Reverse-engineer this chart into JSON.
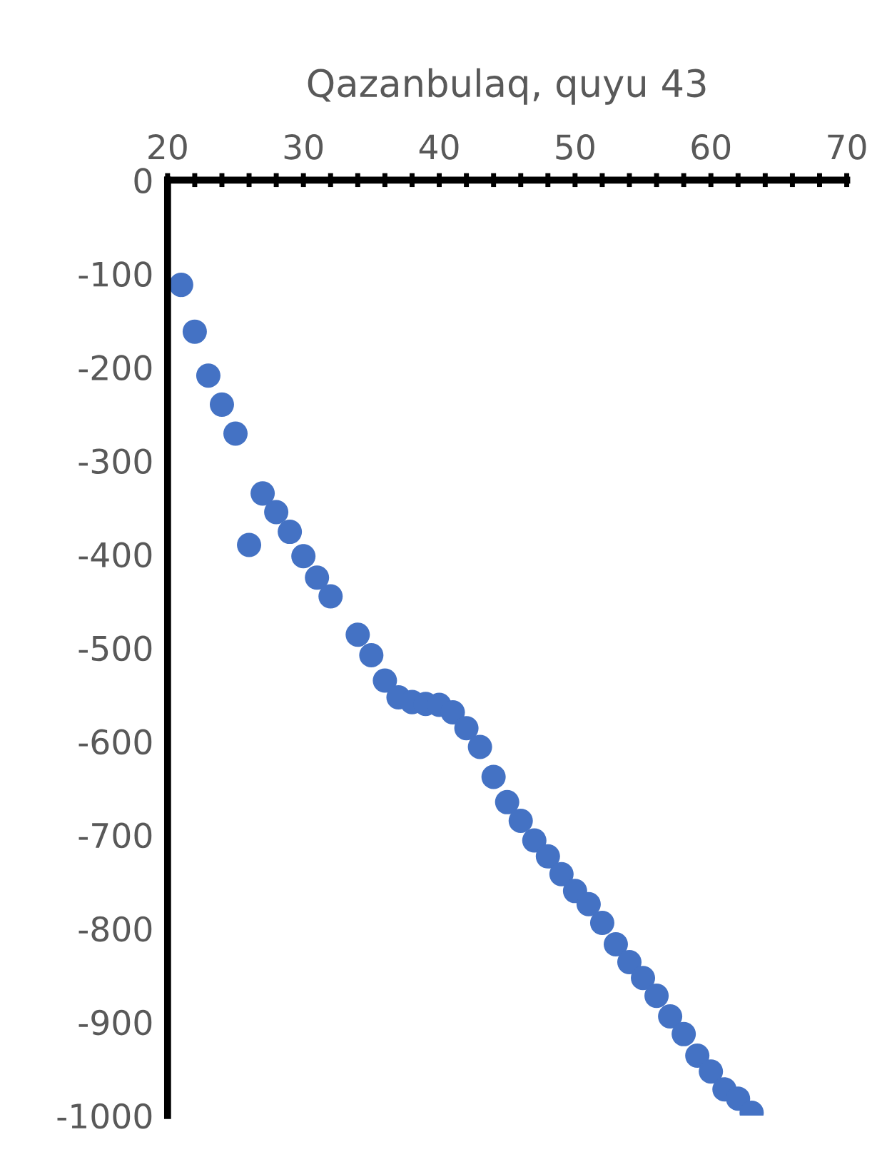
{
  "chart_data": {
    "type": "scatter",
    "title": "Qazanbulaq, quyu 43",
    "x": [
      21,
      22,
      23,
      24,
      25,
      26,
      27,
      28,
      29,
      30,
      31,
      32,
      34,
      35,
      36,
      37,
      38,
      39,
      40,
      41,
      42,
      43,
      44,
      45,
      46,
      47,
      48,
      49,
      50,
      51,
      52,
      53,
      54,
      55,
      56,
      57,
      58,
      59,
      60,
      61,
      62,
      63
    ],
    "series": [
      {
        "color": "#4472c4",
        "values": [
          -112,
          -162,
          -209,
          -240,
          -271,
          -390,
          -335,
          -355,
          -376,
          -402,
          -425,
          -445,
          -486,
          -508,
          -535,
          -553,
          -558,
          -560,
          -561,
          -569,
          -586,
          -606,
          -638,
          -665,
          -685,
          -706,
          -723,
          -742,
          -760,
          -774,
          -794,
          -817,
          -836,
          -853,
          -872,
          -894,
          -913,
          -936,
          -953,
          -972,
          -982,
          -997
        ]
      }
    ],
    "xlim": [
      20,
      70
    ],
    "xticks": [
      20,
      30,
      40,
      50,
      60,
      70
    ],
    "ylim": [
      -1000,
      0
    ],
    "yticks": [
      -1000,
      -900,
      -800,
      -700,
      -600,
      -500,
      -400,
      -300,
      -200,
      -100,
      0
    ],
    "grid": false,
    "legend": false,
    "marker": "circle"
  }
}
